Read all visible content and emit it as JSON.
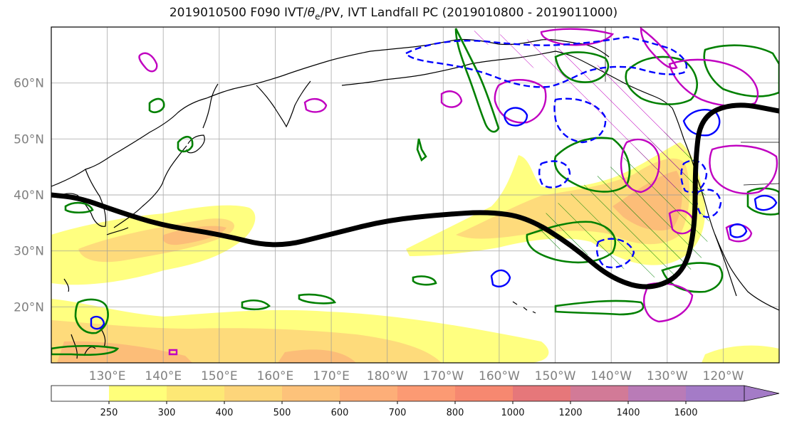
{
  "title": {
    "prefix": "2019010500 F090 IVT/",
    "theta": "θ",
    "sub": "e",
    "suffix": "/PV, IVT Landfall PC (2019010800 - 2019011000)"
  },
  "map": {
    "lat_range": [
      10,
      70
    ],
    "lon_range": [
      120,
      250
    ],
    "lat_labels": [
      {
        "lat": 60,
        "text": "60°N"
      },
      {
        "lat": 50,
        "text": "50°N"
      },
      {
        "lat": 40,
        "text": "40°N"
      },
      {
        "lat": 30,
        "text": "30°N"
      },
      {
        "lat": 20,
        "text": "20°N"
      }
    ],
    "lon_labels": [
      {
        "lon": 130,
        "text": "130°E"
      },
      {
        "lon": 140,
        "text": "140°E"
      },
      {
        "lon": 150,
        "text": "150°E"
      },
      {
        "lon": 160,
        "text": "160°E"
      },
      {
        "lon": 170,
        "text": "170°E"
      },
      {
        "lon": 180,
        "text": "180°W"
      },
      {
        "lon": 190,
        "text": "170°W"
      },
      {
        "lon": 200,
        "text": "160°W"
      },
      {
        "lon": 210,
        "text": "150°W"
      },
      {
        "lon": 220,
        "text": "140°W"
      },
      {
        "lon": 230,
        "text": "130°W"
      },
      {
        "lon": 240,
        "text": "120°W"
      }
    ],
    "jet_path": [
      [
        120,
        40
      ],
      [
        125,
        39.5
      ],
      [
        132,
        37
      ],
      [
        140,
        34.5
      ],
      [
        150,
        33
      ],
      [
        160,
        30.5
      ],
      [
        170,
        33
      ],
      [
        180,
        35.5
      ],
      [
        190,
        36.5
      ],
      [
        198,
        37
      ],
      [
        205,
        36
      ],
      [
        213,
        31
      ],
      [
        220,
        25
      ],
      [
        227,
        23
      ],
      [
        233,
        26
      ],
      [
        235,
        34
      ],
      [
        235,
        46
      ],
      [
        236,
        54
      ],
      [
        242,
        56.5
      ],
      [
        250,
        55
      ]
    ]
  },
  "colorbar": {
    "ticks": [
      "250",
      "300",
      "400",
      "500",
      "600",
      "700",
      "800",
      "1000",
      "1200",
      "1400",
      "1600"
    ],
    "colors": [
      "#ffffff",
      "#ffff7a",
      "#fde875",
      "#fdd57a",
      "#fdc27a",
      "#fdae78",
      "#fc9a73",
      "#f68870",
      "#e6777a",
      "#d27a97",
      "#b97bb7",
      "#a47bc7"
    ]
  },
  "colors": {
    "ivt_light": "#ffff80",
    "ivt_mid": "#fed57a",
    "ivt_dark": "#fbb178",
    "green_contour": "#008000",
    "magenta_contour": "#c000c0",
    "blue_contour": "#0000ff",
    "jet": "#000000"
  }
}
